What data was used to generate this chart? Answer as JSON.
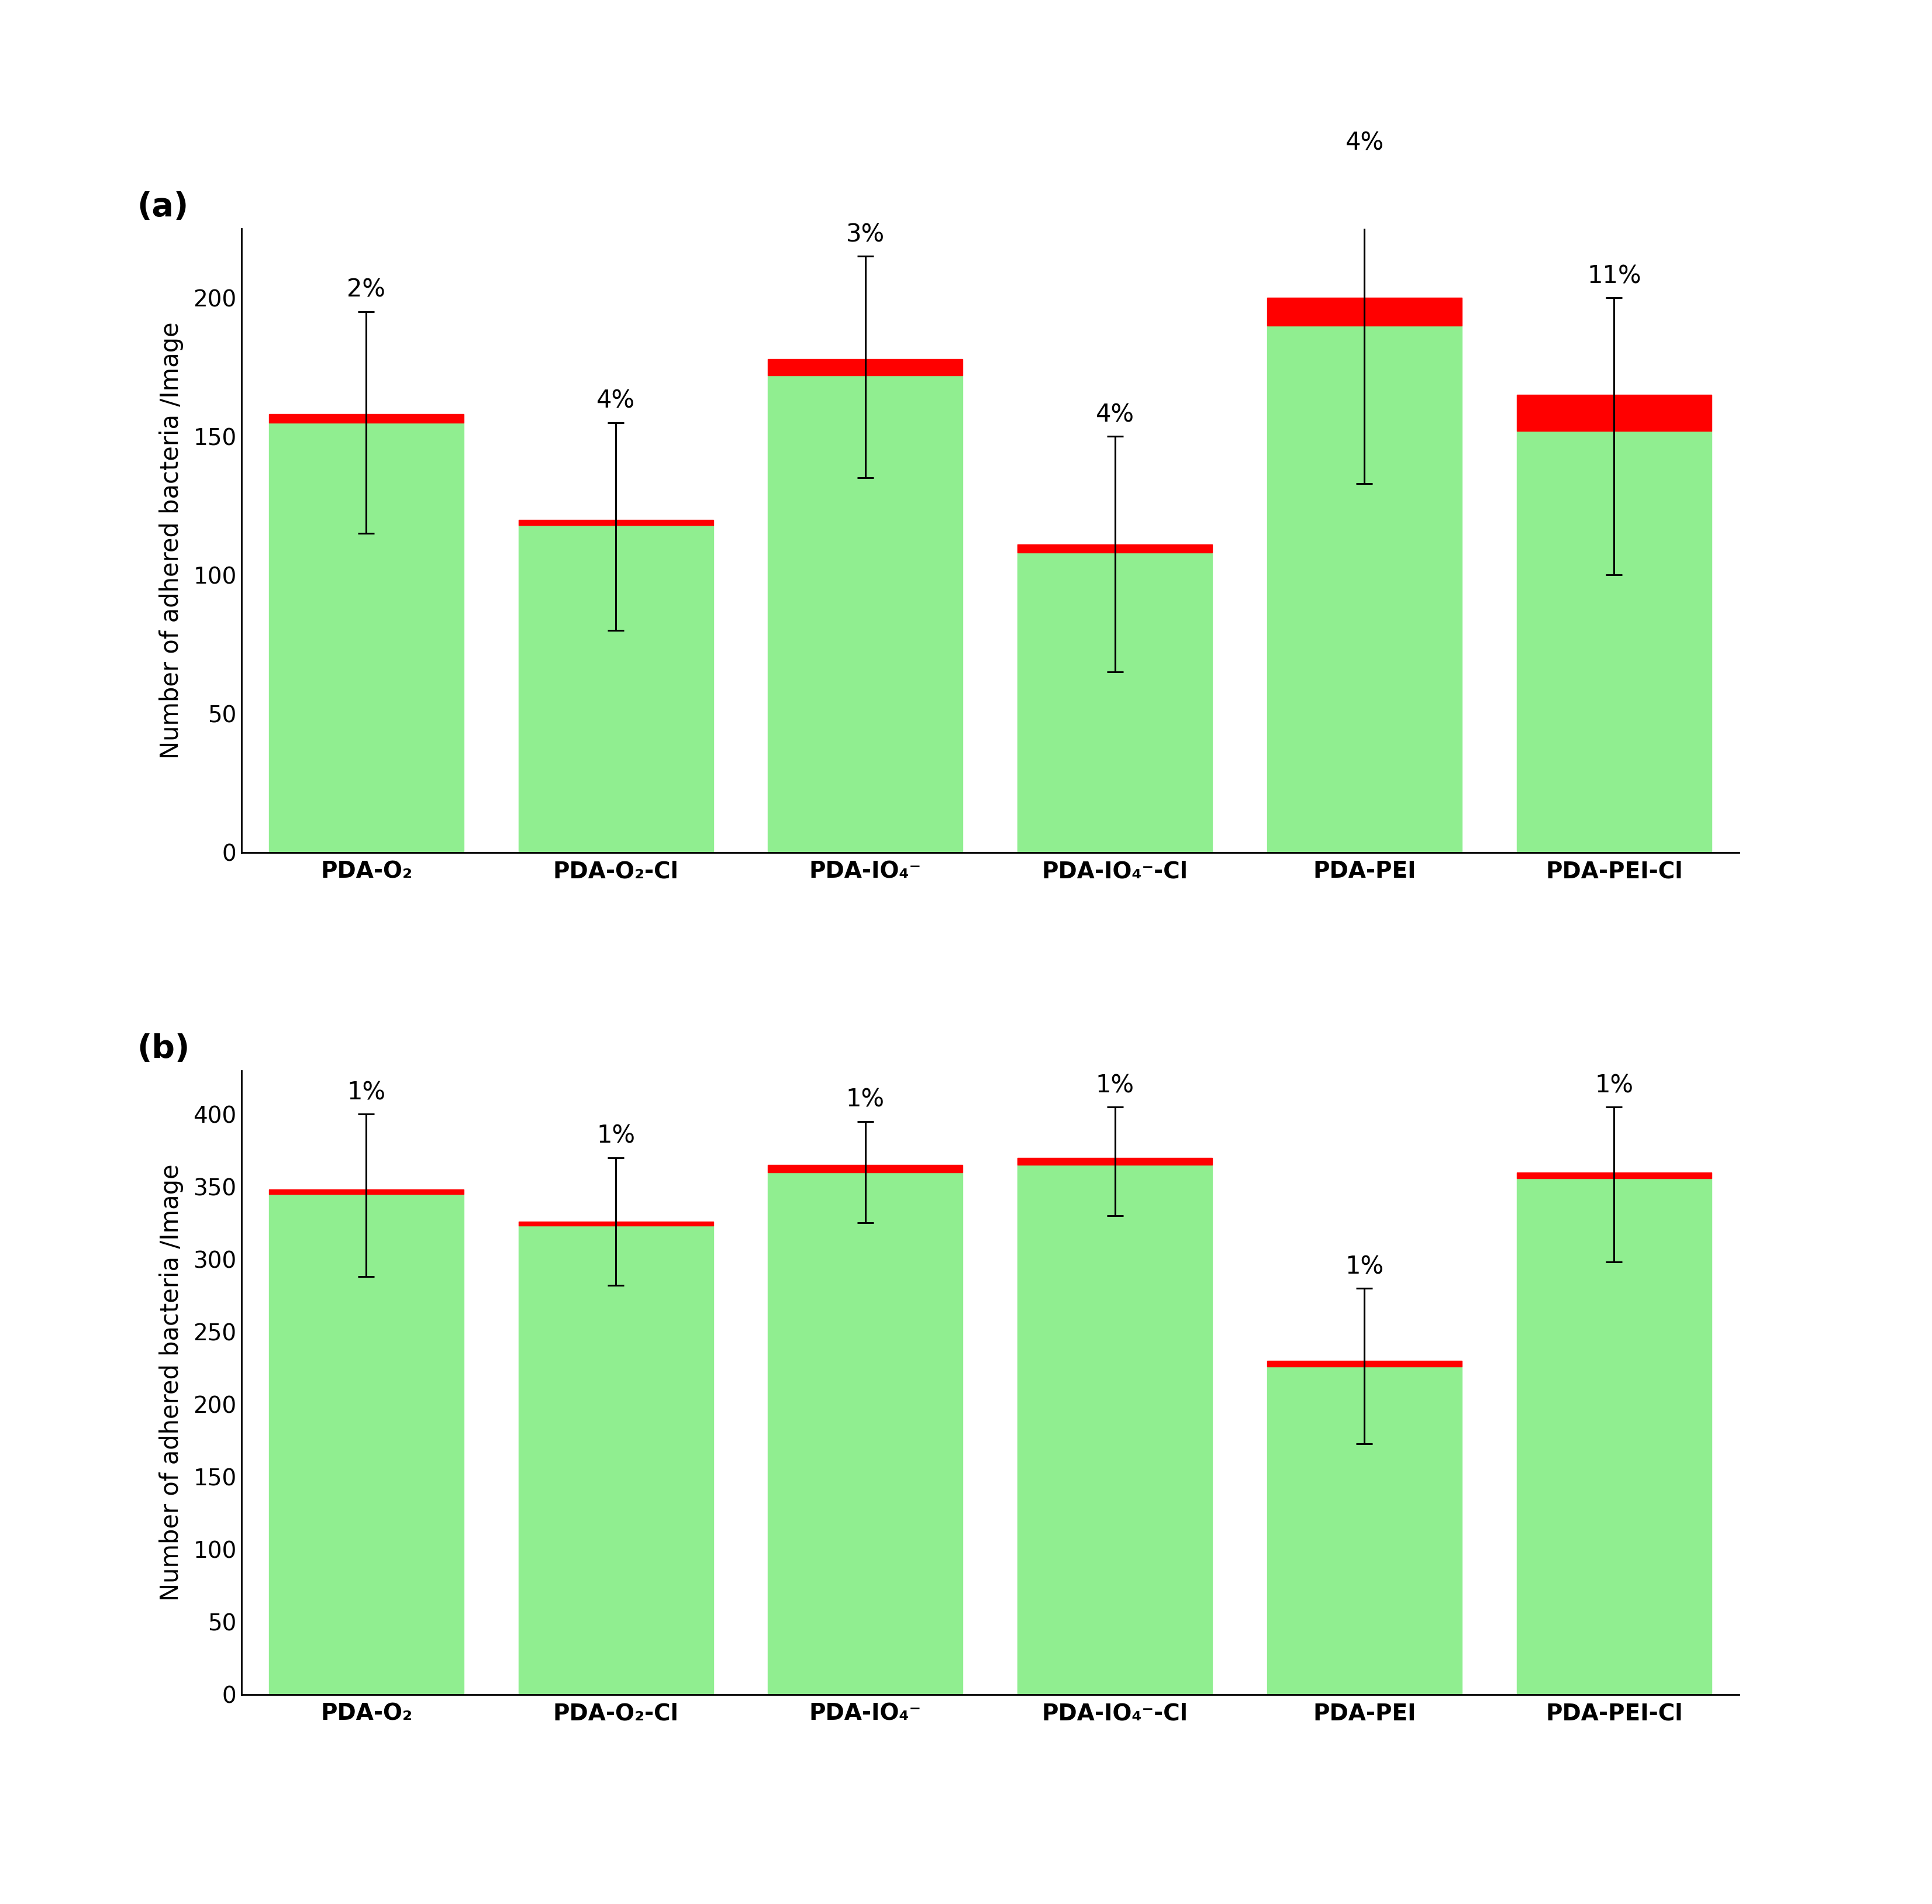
{
  "panel_a": {
    "title_label": "(a)",
    "percent_labels": [
      "2%",
      "4%",
      "3%",
      "4%",
      "4%",
      "11%"
    ],
    "categories": [
      "PDA-O₂",
      "PDA-O₂-Cl",
      "PDA-IO₄⁻",
      "PDA-IO₄⁻-Cl",
      "PDA-PEI",
      "PDA-PEI-Cl"
    ],
    "green_bar_values": [
      155,
      118,
      172,
      108,
      190,
      152
    ],
    "red_top_values": [
      158,
      120,
      178,
      111,
      200,
      165
    ],
    "error_low": [
      115,
      80,
      135,
      65,
      133,
      100
    ],
    "error_high": [
      195,
      155,
      215,
      150,
      248,
      200
    ],
    "ylabel": "Number of adhered bacteria /Image",
    "ylim": [
      0,
      225
    ],
    "yticks": [
      0,
      50,
      100,
      150,
      200
    ]
  },
  "panel_b": {
    "title_label": "(b)",
    "percent_labels": [
      "1%",
      "1%",
      "1%",
      "1%",
      "1%",
      "1%"
    ],
    "categories": [
      "PDA-O₂",
      "PDA-O₂-Cl",
      "PDA-IO₄⁻",
      "PDA-IO₄⁻-Cl",
      "PDA-PEI",
      "PDA-PEI-Cl"
    ],
    "green_bar_values": [
      345,
      323,
      360,
      365,
      226,
      356
    ],
    "red_top_values": [
      348,
      326,
      365,
      370,
      230,
      360
    ],
    "error_low": [
      288,
      282,
      325,
      330,
      173,
      298
    ],
    "error_high": [
      400,
      370,
      395,
      405,
      280,
      405
    ],
    "ylabel": "Number of adhered bacteria /Image",
    "ylim": [
      0,
      430
    ],
    "yticks": [
      0,
      50,
      100,
      150,
      200,
      250,
      300,
      350,
      400
    ]
  },
  "bar_green_color": "#90EE90",
  "bar_red_color": "#FF0000",
  "bar_width": 0.78,
  "error_capsize": 10,
  "error_linewidth": 2.2,
  "label_fontsize": 30,
  "tick_fontsize": 28,
  "percent_fontsize": 30,
  "panel_label_fontsize": 40,
  "figure_facecolor": "#ffffff"
}
